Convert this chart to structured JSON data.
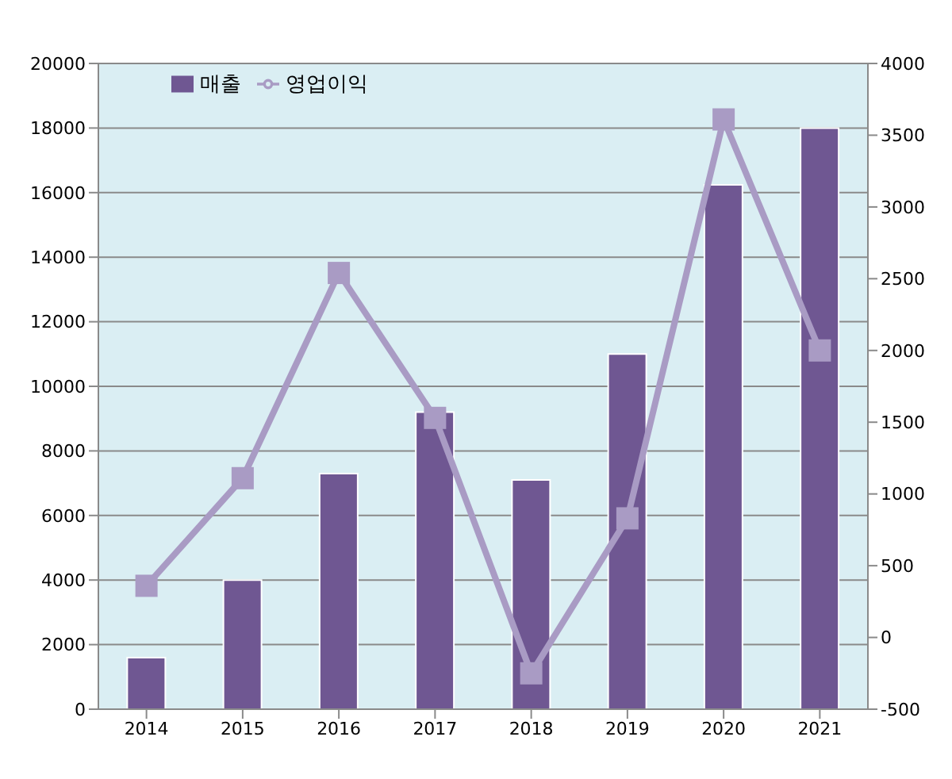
{
  "chart_data": {
    "type": "bar",
    "categories": [
      "2014",
      "2015",
      "2016",
      "2017",
      "2018",
      "2019",
      "2020",
      "2021"
    ],
    "series": [
      {
        "name": "매출",
        "color": "#6f5792",
        "values": [
          1600,
          4000,
          7300,
          9200,
          7100,
          11000,
          16240,
          18000
        ]
      },
      {
        "name": "영업이익",
        "type": "line",
        "axis": "y2",
        "color": "#a99bc4",
        "marker": "square",
        "values": [
          360,
          1110,
          2540,
          1530,
          -250,
          830,
          3610,
          2000
        ]
      }
    ],
    "ylim": [
      0,
      20000
    ],
    "yticks": [
      0,
      2000,
      4000,
      6000,
      8000,
      10000,
      12000,
      14000,
      16000,
      18000,
      20000
    ],
    "y2lim": [
      -500,
      4000
    ],
    "y2ticks": [
      -500,
      0,
      500,
      1000,
      1500,
      2000,
      2500,
      3000,
      3500,
      4000
    ],
    "grid": "y",
    "legend": "top left"
  }
}
